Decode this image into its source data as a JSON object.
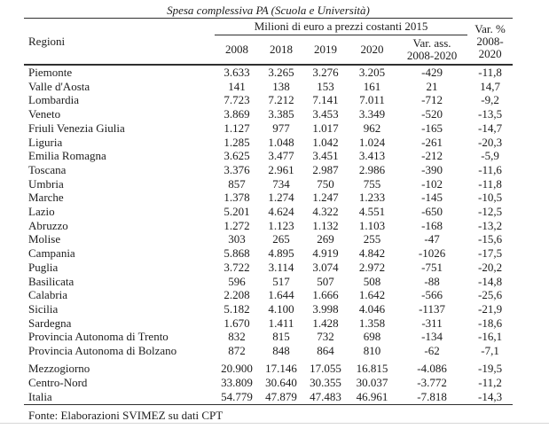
{
  "page": {
    "title": "Spesa complessiva PA (Scuola e Università)",
    "source_note": "Fonte: Elaborazioni SVIMEZ su dati CPT"
  },
  "table": {
    "region_header": "Regioni",
    "group_header": "Milioni di euro a prezzi costanti 2015",
    "year_columns": [
      "2008",
      "2018",
      "2019",
      "2020"
    ],
    "var_ass_header": {
      "line1": "Var. ass.",
      "line2": "2008-2020"
    },
    "var_pct_header": {
      "line1": "Var. %",
      "line2": "2008-",
      "line3": "2020"
    },
    "rows": [
      {
        "region": "Piemonte",
        "values": [
          "3.633",
          "3.265",
          "3.276",
          "3.205",
          "-429",
          "-11,8"
        ]
      },
      {
        "region": "Valle d'Aosta",
        "values": [
          "141",
          "138",
          "153",
          "161",
          "21",
          "14,7"
        ]
      },
      {
        "region": "Lombardia",
        "values": [
          "7.723",
          "7.212",
          "7.141",
          "7.011",
          "-712",
          "-9,2"
        ]
      },
      {
        "region": "Veneto",
        "values": [
          "3.869",
          "3.385",
          "3.453",
          "3.349",
          "-520",
          "-13,5"
        ]
      },
      {
        "region": "Friuli Venezia Giulia",
        "values": [
          "1.127",
          "977",
          "1.017",
          "962",
          "-165",
          "-14,7"
        ]
      },
      {
        "region": "Liguria",
        "values": [
          "1.285",
          "1.048",
          "1.042",
          "1.024",
          "-261",
          "-20,3"
        ]
      },
      {
        "region": "Emilia Romagna",
        "values": [
          "3.625",
          "3.477",
          "3.451",
          "3.413",
          "-212",
          "-5,9"
        ]
      },
      {
        "region": "Toscana",
        "values": [
          "3.376",
          "2.961",
          "2.987",
          "2.986",
          "-390",
          "-11,6"
        ]
      },
      {
        "region": "Umbria",
        "values": [
          "857",
          "734",
          "750",
          "755",
          "-102",
          "-11,8"
        ]
      },
      {
        "region": "Marche",
        "values": [
          "1.378",
          "1.274",
          "1.247",
          "1.233",
          "-145",
          "-10,5"
        ]
      },
      {
        "region": "Lazio",
        "values": [
          "5.201",
          "4.624",
          "4.322",
          "4.551",
          "-650",
          "-12,5"
        ]
      },
      {
        "region": "Abruzzo",
        "values": [
          "1.272",
          "1.123",
          "1.132",
          "1.103",
          "-168",
          "-13,2"
        ]
      },
      {
        "region": "Molise",
        "values": [
          "303",
          "265",
          "269",
          "255",
          "-47",
          "-15,6"
        ]
      },
      {
        "region": "Campania",
        "values": [
          "5.868",
          "4.895",
          "4.919",
          "4.842",
          "-1026",
          "-17,5"
        ]
      },
      {
        "region": "Puglia",
        "values": [
          "3.722",
          "3.114",
          "3.074",
          "2.972",
          "-751",
          "-20,2"
        ]
      },
      {
        "region": "Basilicata",
        "values": [
          "596",
          "517",
          "507",
          "508",
          "-88",
          "-14,8"
        ]
      },
      {
        "region": "Calabria",
        "values": [
          "2.208",
          "1.644",
          "1.666",
          "1.642",
          "-566",
          "-25,6"
        ]
      },
      {
        "region": "Sicilia",
        "values": [
          "5.182",
          "4.100",
          "3.998",
          "4.046",
          "-1137",
          "-21,9"
        ]
      },
      {
        "region": "Sardegna",
        "values": [
          "1.670",
          "1.411",
          "1.428",
          "1.358",
          "-311",
          "-18,6"
        ]
      },
      {
        "region": "Provincia Autonoma di Trento",
        "values": [
          "832",
          "815",
          "732",
          "698",
          "-134",
          "-16,1"
        ]
      },
      {
        "region": "Provincia Autonoma di Bolzano",
        "values": [
          "872",
          "848",
          "864",
          "810",
          "-62",
          "-7,1"
        ]
      }
    ],
    "totals": [
      {
        "region": "Mezzogiorno",
        "values": [
          "20.900",
          "17.146",
          "17.055",
          "16.815",
          "-4.086",
          "-19,5"
        ]
      },
      {
        "region": "Centro-Nord",
        "values": [
          "33.809",
          "30.640",
          "30.355",
          "30.037",
          "-3.772",
          "-11,2"
        ]
      },
      {
        "region": "Italia",
        "values": [
          "54.779",
          "47.879",
          "47.483",
          "46.961",
          "-7.818",
          "-14,3"
        ]
      }
    ]
  }
}
